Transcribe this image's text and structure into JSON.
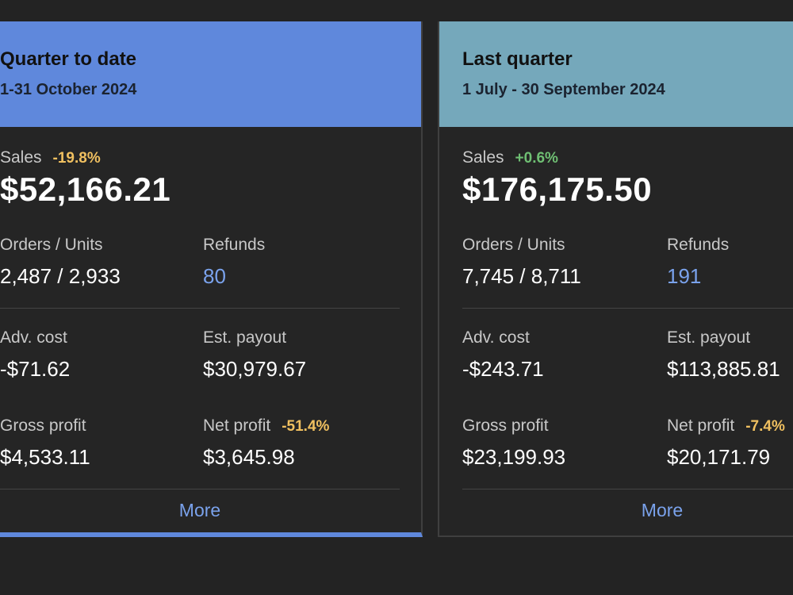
{
  "cards": [
    {
      "title": "Quarter to date",
      "date_range": "1-31 October 2024",
      "sales_label": "Sales",
      "sales_delta": "-19.8%",
      "sales_value": "$52,166.21",
      "orders_units_label": "Orders / Units",
      "orders_units_value": "2,487 / 2,933",
      "refunds_label": "Refunds",
      "refunds_value": "80",
      "adv_cost_label": "Adv. cost",
      "adv_cost_value": "-$71.62",
      "est_payout_label": "Est. payout",
      "est_payout_value": "$30,979.67",
      "gross_profit_label": "Gross profit",
      "gross_profit_value": "$4,533.11",
      "net_profit_label": "Net profit",
      "net_profit_delta": "-51.4%",
      "net_profit_value": "$3,645.98",
      "more_label": "More"
    },
    {
      "title": "Last quarter",
      "date_range": "1 July - 30 September 2024",
      "sales_label": "Sales",
      "sales_delta": "+0.6%",
      "sales_value": "$176,175.50",
      "orders_units_label": "Orders / Units",
      "orders_units_value": "7,745 / 8,711",
      "refunds_label": "Refunds",
      "refunds_value": "191",
      "adv_cost_label": "Adv. cost",
      "adv_cost_value": "-$243.71",
      "est_payout_label": "Est. payout",
      "est_payout_value": "$113,885.81",
      "gross_profit_label": "Gross profit",
      "gross_profit_value": "$23,199.93",
      "net_profit_label": "Net profit",
      "net_profit_delta": "-7.4%",
      "net_profit_value": "$20,171.79",
      "more_label": "More"
    }
  ],
  "colors": {
    "card1_header": "#5f88dc",
    "card2_header": "#75a8bb",
    "negative_delta": "#f0c060",
    "positive_delta": "#6fbf73",
    "link": "#7aa2ec",
    "background": "#232323"
  }
}
